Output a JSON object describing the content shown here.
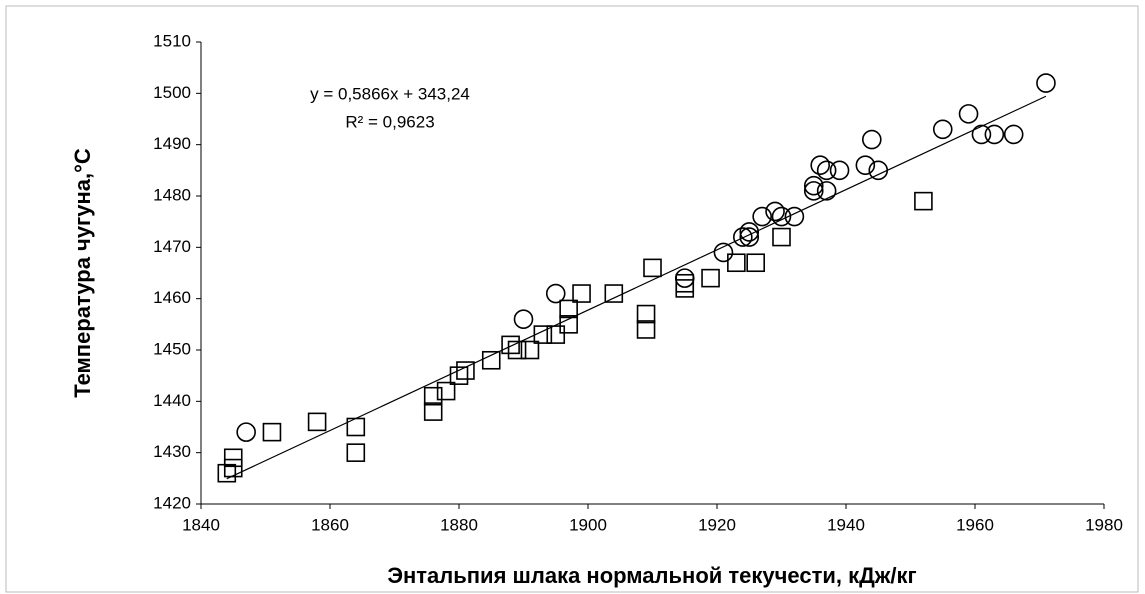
{
  "chart_data": {
    "type": "scatter",
    "x_label": "Энтальпия шлака нормальной текучести, кДж/кг",
    "y_label": "Температура чугуна,°С",
    "annotations": [
      "y = 0,5866x + 343,24",
      "R² = 0,9623"
    ],
    "xlim": [
      1840,
      1980
    ],
    "xticks": [
      1840,
      1860,
      1880,
      1900,
      1920,
      1940,
      1960,
      1980
    ],
    "ylim": [
      1420,
      1510
    ],
    "yticks": [
      1420,
      1430,
      1440,
      1450,
      1460,
      1470,
      1480,
      1490,
      1500,
      1510
    ],
    "grid": false,
    "series": [
      {
        "marker": "square",
        "color": "#000000",
        "x": [
          1844,
          1845,
          1845,
          1851,
          1858,
          1864,
          1864,
          1876,
          1876,
          1878,
          1880,
          1881,
          1885,
          1888,
          1889,
          1891,
          1893,
          1895,
          1897,
          1897,
          1899,
          1904,
          1909,
          1909,
          1910,
          1915,
          1915,
          1919,
          1923,
          1926,
          1930,
          1952
        ],
        "values": [
          1426,
          1429,
          1427,
          1434,
          1436,
          1435,
          1430,
          1441,
          1438,
          1442,
          1445,
          1446,
          1448,
          1451,
          1450,
          1450,
          1453,
          1453,
          1455,
          1458,
          1461,
          1461,
          1457,
          1454,
          1466,
          1462,
          1463,
          1464,
          1467,
          1467,
          1472,
          1479
        ]
      },
      {
        "marker": "circle",
        "color": "#000000",
        "x": [
          1847,
          1890,
          1895,
          1915,
          1921,
          1924,
          1925,
          1925,
          1927,
          1929,
          1930,
          1932,
          1935,
          1935,
          1936,
          1937,
          1937,
          1939,
          1943,
          1944,
          1945,
          1955,
          1959,
          1961,
          1963,
          1966,
          1971
        ],
        "values": [
          1434,
          1456,
          1461,
          1464,
          1469,
          1472,
          1473,
          1472,
          1476,
          1477,
          1476,
          1476,
          1481,
          1482,
          1486,
          1485,
          1481,
          1485,
          1486,
          1491,
          1485,
          1493,
          1496,
          1492,
          1492,
          1492,
          1502
        ]
      }
    ],
    "trendline": {
      "color": "#000000",
      "x": [
        1844,
        1971
      ],
      "values": [
        1424.93,
        1499.43
      ]
    }
  }
}
